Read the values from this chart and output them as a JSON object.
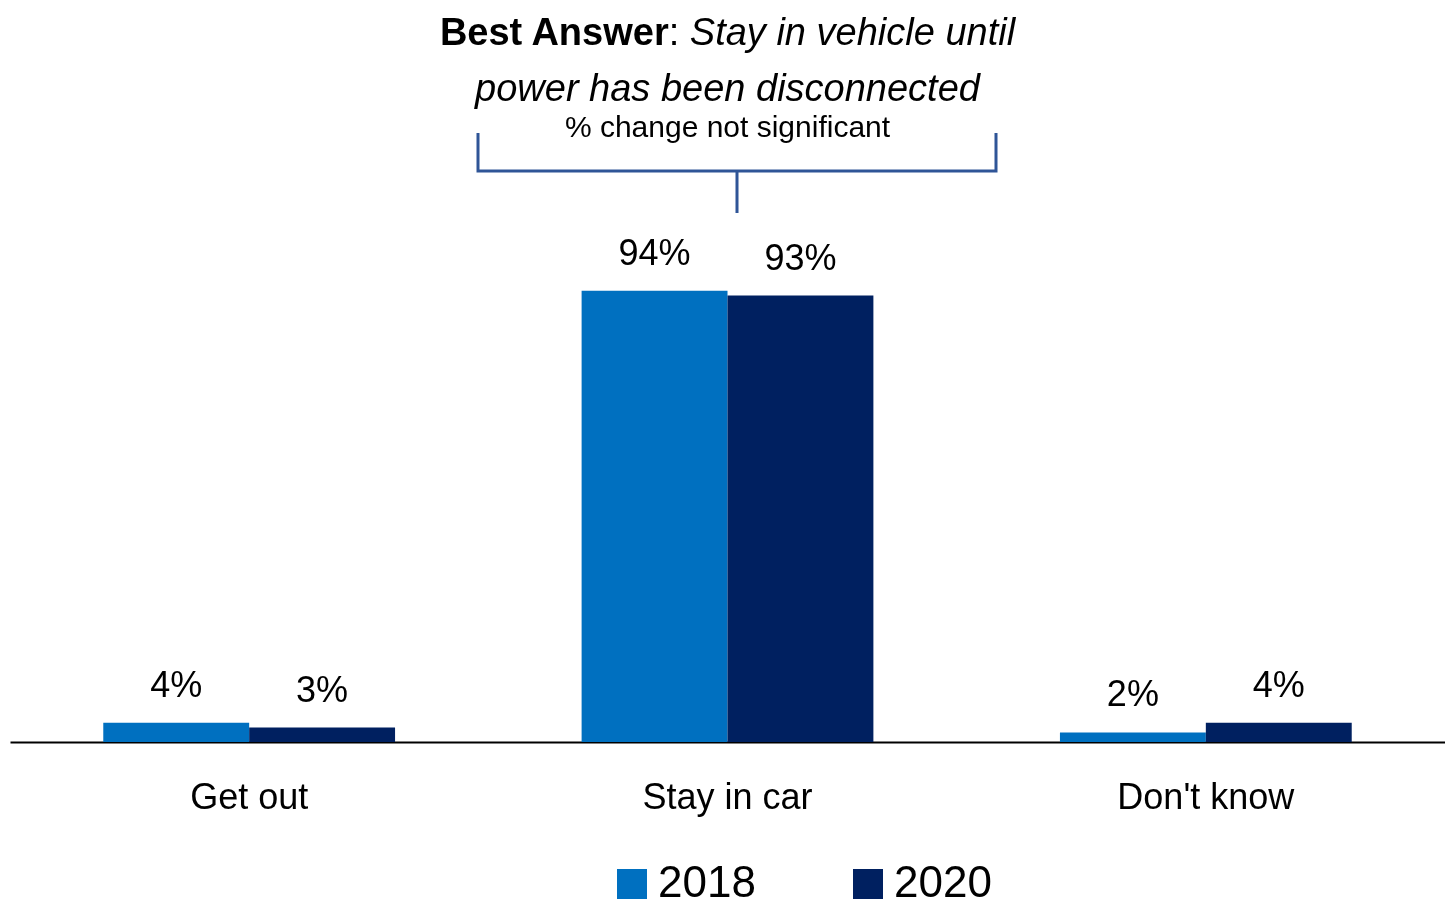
{
  "chart_data": {
    "type": "bar",
    "title": "Best Answer: Stay in vehicle until power has been disconnected",
    "subtitle": "% change not significant",
    "categories": [
      "Get out",
      "Stay in car",
      "Don't know"
    ],
    "series": [
      {
        "name": "2018",
        "color": "#0070c0",
        "values": [
          4,
          94,
          2
        ],
        "value_labels": [
          "4%",
          "94%",
          "2%"
        ]
      },
      {
        "name": "2020",
        "color": "#002060",
        "values": [
          3,
          93,
          4
        ],
        "value_labels": [
          "3%",
          "93%",
          "4%"
        ]
      }
    ],
    "legend": "bottom"
  }
}
